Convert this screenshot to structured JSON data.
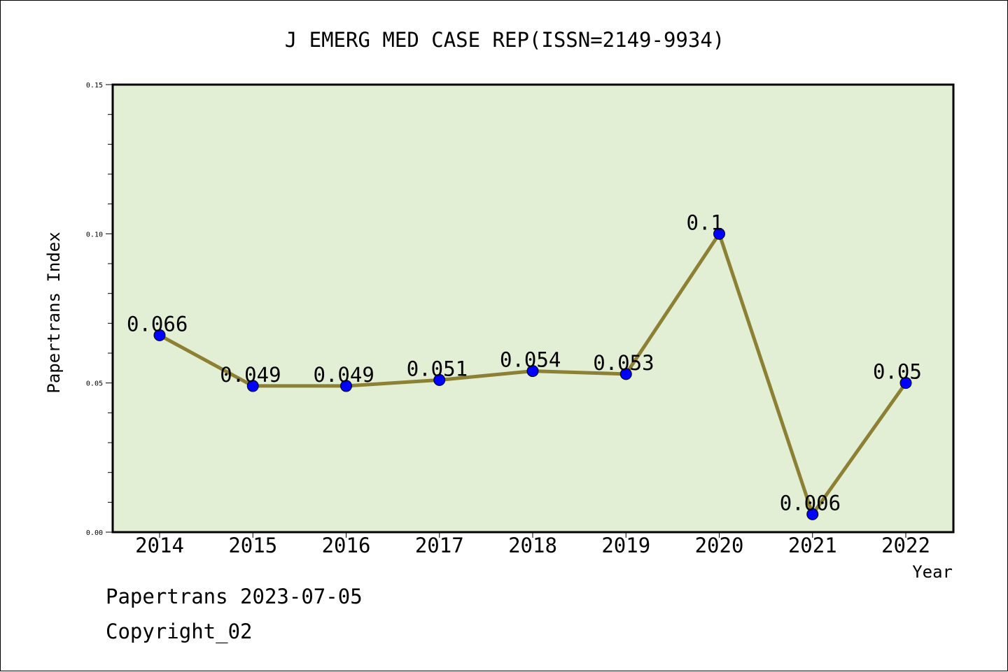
{
  "chart_data": {
    "type": "line",
    "title": "J EMERG MED CASE REP(ISSN=2149-9934)",
    "xlabel": "Year",
    "ylabel": "Papertrans Index",
    "categories": [
      "2014",
      "2015",
      "2016",
      "2017",
      "2018",
      "2019",
      "2020",
      "2021",
      "2022"
    ],
    "values": [
      0.066,
      0.049,
      0.049,
      0.051,
      0.054,
      0.053,
      0.1,
      0.006,
      0.05
    ],
    "data_labels": [
      "0.066",
      "0.049",
      "0.049",
      "0.051",
      "0.054",
      "0.053",
      "0.1",
      "0.006",
      "0.05"
    ],
    "ylim": [
      0,
      0.15
    ],
    "yticks": [
      "0.00",
      "0.05",
      "0.10",
      "0.15"
    ],
    "grid": false,
    "legend": "none",
    "colors": {
      "plot_background": "#e2efd4",
      "line": "#8c8034",
      "marker": "#0000ff"
    }
  },
  "footer": {
    "line1": "Papertrans 2023-07-05",
    "line2": "Copyright_02"
  }
}
